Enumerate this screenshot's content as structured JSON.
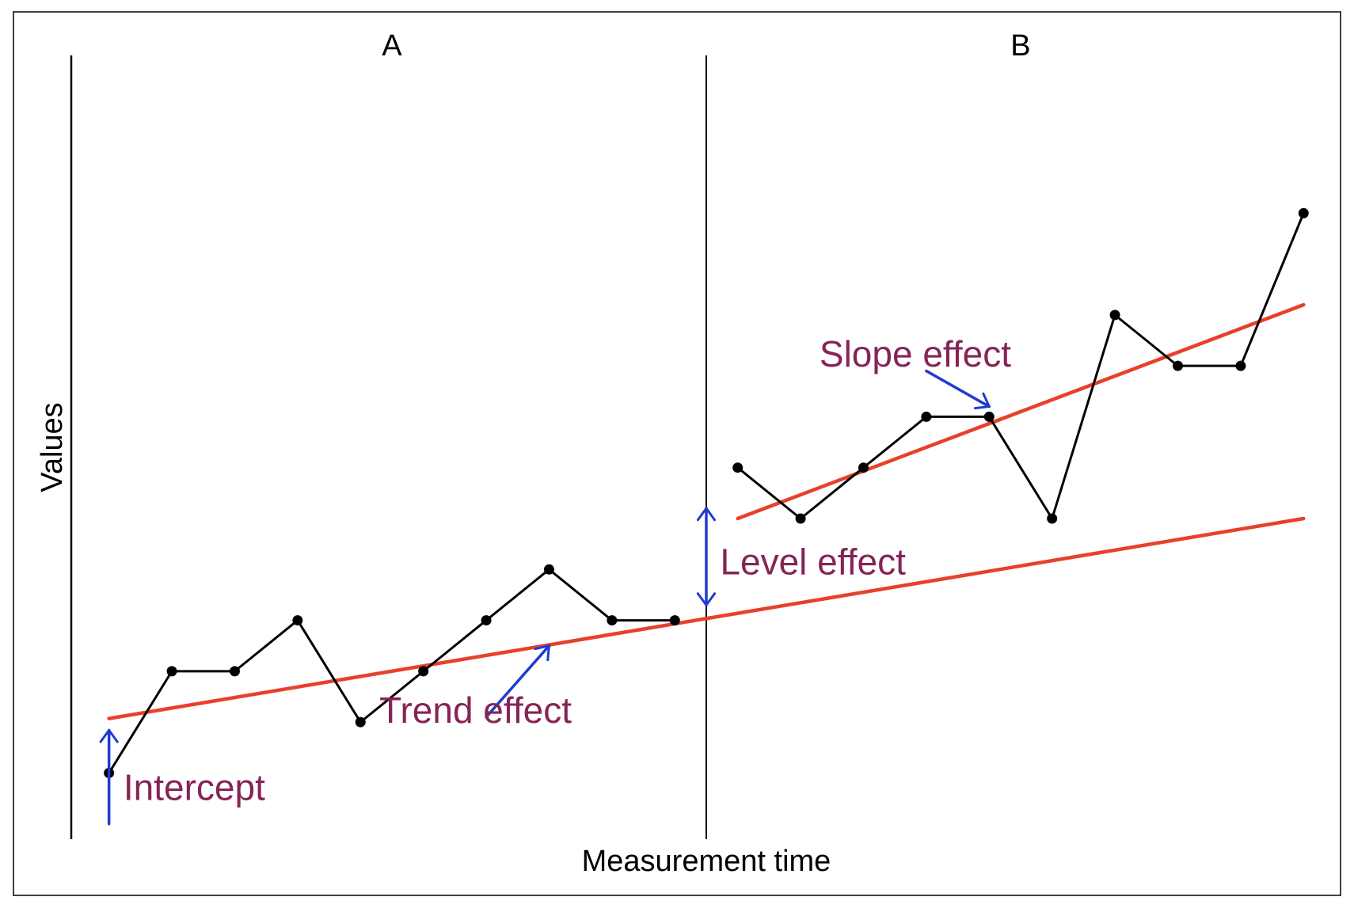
{
  "chart_data": {
    "type": "line",
    "xlabel": "Measurement time",
    "ylabel": "Values",
    "phases": [
      {
        "name": "A",
        "x_start": 1,
        "x_end": 10
      },
      {
        "name": "B",
        "x_start": 11,
        "x_end": 20
      }
    ],
    "phase_change_at": 10.5,
    "xlim": [
      0.4,
      20.5
    ],
    "ylim": [
      -0.3,
      15.1
    ],
    "grid": false,
    "legend": "none",
    "series": [
      {
        "values": [
          {
            "x": 1,
            "y": 1
          },
          {
            "x": 2,
            "y": 3
          },
          {
            "x": 3,
            "y": 3
          },
          {
            "x": 4,
            "y": 4
          },
          {
            "x": 5,
            "y": 2
          },
          {
            "x": 6,
            "y": 3
          },
          {
            "x": 7,
            "y": 4
          },
          {
            "x": 8,
            "y": 5
          },
          {
            "x": 9,
            "y": 4
          },
          {
            "x": 10,
            "y": 4
          }
        ]
      },
      {
        "values": [
          {
            "x": 11,
            "y": 7
          },
          {
            "x": 12,
            "y": 6
          },
          {
            "x": 13,
            "y": 7
          },
          {
            "x": 14,
            "y": 8
          },
          {
            "x": 15,
            "y": 8
          },
          {
            "x": 16,
            "y": 6
          },
          {
            "x": 17,
            "y": 10
          },
          {
            "x": 18,
            "y": 9
          },
          {
            "x": 19,
            "y": 9
          },
          {
            "x": 20,
            "y": 12
          }
        ]
      }
    ],
    "trend_lines": [
      {
        "from": {
          "x": 1,
          "y": 2.07
        },
        "to": {
          "x": 20,
          "y": 6.0
        }
      },
      {
        "from": {
          "x": 11,
          "y": 6.0
        },
        "to": {
          "x": 20,
          "y": 10.2
        }
      }
    ],
    "annotations": [
      {
        "text": "Intercept",
        "text_x": 1.23,
        "text_y": 0.47,
        "arrow_from": {
          "x": 1.0,
          "y": 0.0
        },
        "arrow_to": {
          "x": 1.0,
          "y": 1.84
        }
      },
      {
        "text": "Trend effect",
        "text_x": 5.3,
        "text_y": 1.99,
        "arrow_from": {
          "x": 7.0,
          "y": 2.1
        },
        "arrow_to": {
          "x": 8.0,
          "y": 3.5
        }
      },
      {
        "text": "Level effect",
        "text_x": 10.72,
        "text_y": 4.9,
        "arrow_from": {
          "x": 10.5,
          "y": 4.3
        },
        "arrow_to": {
          "x": 10.5,
          "y": 6.2
        },
        "double": true
      },
      {
        "text": "Slope effect",
        "text_x": 12.3,
        "text_y": 8.99,
        "arrow_from": {
          "x": 14.0,
          "y": 8.9
        },
        "arrow_to": {
          "x": 15.0,
          "y": 8.2
        }
      }
    ],
    "colors": {
      "data_line": "#000000",
      "trend": "#e8402a",
      "arrow": "#1f3ccf",
      "annotation_text": "#862457",
      "axis": "#000000"
    }
  }
}
